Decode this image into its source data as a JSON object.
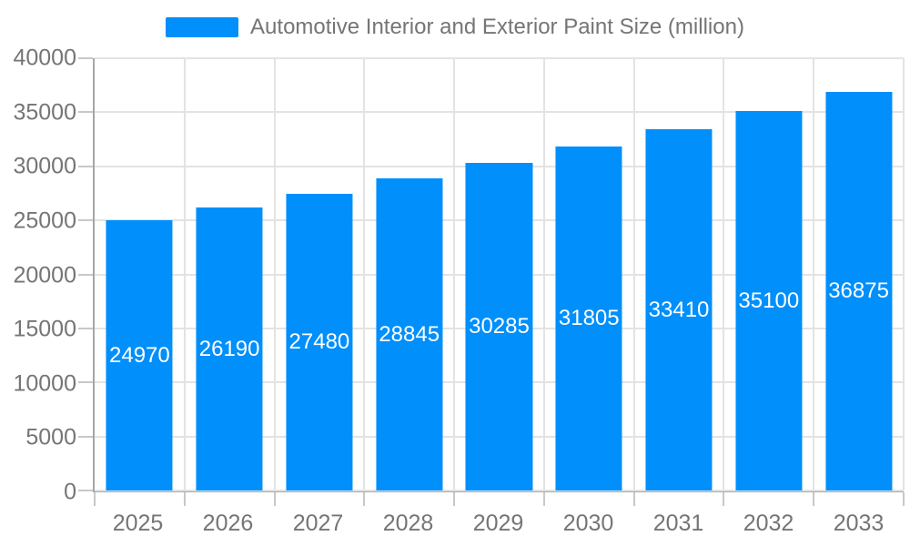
{
  "chart_data": {
    "type": "bar",
    "title": "Automotive Interior and Exterior Paint Size (million)",
    "categories": [
      "2025",
      "2026",
      "2027",
      "2028",
      "2029",
      "2030",
      "2031",
      "2032",
      "2033"
    ],
    "series": [
      {
        "name": "Automotive Interior and Exterior Paint Size (million)",
        "values": [
          24970,
          26190,
          27480,
          28845,
          30285,
          31805,
          33410,
          35100,
          36875
        ]
      }
    ],
    "data_labels": [
      "24970",
      "26190",
      "27480",
      "28845",
      "30285",
      "31805",
      "33410",
      "35100",
      "36875"
    ],
    "xlabel": "",
    "ylabel": "",
    "ylim": [
      0,
      40000
    ],
    "yticks": [
      40000,
      35000,
      30000,
      25000,
      20000,
      15000,
      10000,
      5000,
      0
    ],
    "grid": true,
    "legend_position": "top",
    "colors": {
      "bar": "#008FFB",
      "bar_label": "#ffffff",
      "axis_text": "#757575",
      "gridline": "#e3e3e3",
      "axis_line": "#a6a6a6",
      "tick": "#c8c8c8",
      "background": "#ffffff"
    }
  }
}
